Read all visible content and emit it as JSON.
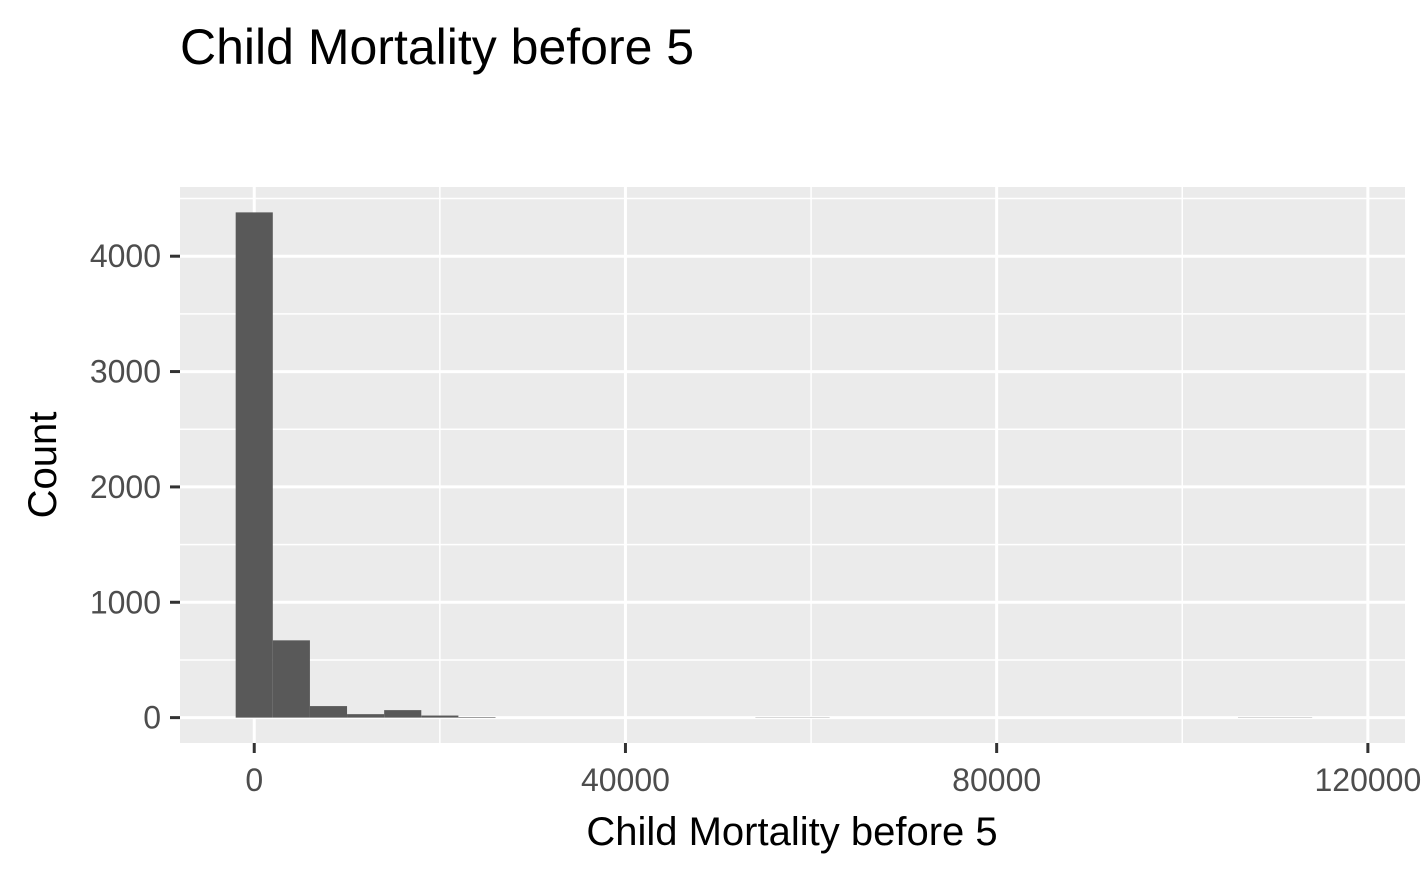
{
  "chart_data": {
    "type": "bar",
    "title": "Child Mortality before 5",
    "xlabel": "Child Mortality before 5",
    "ylabel": "Count",
    "xlim": [
      -8000,
      124000
    ],
    "ylim": [
      -220,
      4600
    ],
    "x_ticks": [
      0,
      40000,
      80000,
      120000
    ],
    "x_tick_labels": [
      "0",
      "40000",
      "80000",
      "120000"
    ],
    "x_minor_ticks": [
      20000,
      60000,
      100000
    ],
    "y_ticks": [
      0,
      1000,
      2000,
      3000,
      4000
    ],
    "y_tick_labels": [
      "0",
      "1000",
      "2000",
      "3000",
      "4000"
    ],
    "y_minor_ticks": [
      500,
      1500,
      2500,
      3500,
      4500
    ],
    "bin_width": 4000,
    "bins": [
      {
        "start": -2000,
        "end": 2000,
        "count": 4380
      },
      {
        "start": 2000,
        "end": 6000,
        "count": 670
      },
      {
        "start": 6000,
        "end": 10000,
        "count": 100
      },
      {
        "start": 10000,
        "end": 14000,
        "count": 30
      },
      {
        "start": 14000,
        "end": 18000,
        "count": 65
      },
      {
        "start": 18000,
        "end": 22000,
        "count": 18
      },
      {
        "start": 22000,
        "end": 26000,
        "count": 5
      },
      {
        "start": 54000,
        "end": 58000,
        "count": 2
      },
      {
        "start": 58000,
        "end": 62000,
        "count": 2
      },
      {
        "start": 106000,
        "end": 110000,
        "count": 2
      },
      {
        "start": 110000,
        "end": 114000,
        "count": 2
      }
    ],
    "grid": true,
    "legend": "none",
    "colors": {
      "panel_background": "#ebebeb",
      "grid_line": "#ffffff",
      "bar_fill": "#595959",
      "tick_text": "#4d4d4d",
      "axis_tick": "#333333",
      "title_text": "#000000"
    }
  }
}
